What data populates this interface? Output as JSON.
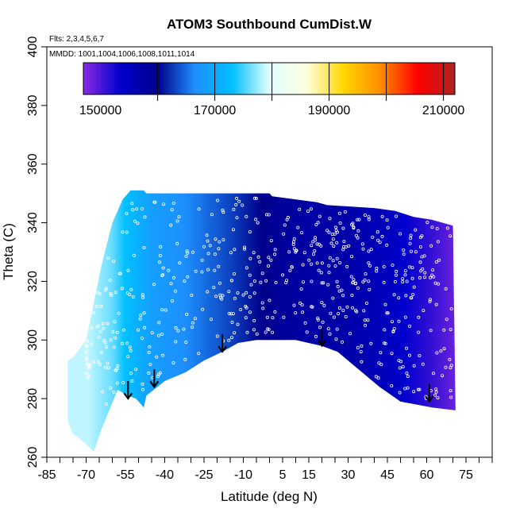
{
  "chart_data": {
    "type": "heatmap",
    "title": "ATOM3 Southbound CumDist.W",
    "annotations": {
      "flights": "Flts: 2,3,4,5,6,7",
      "mmdd": "MMDD: 1001,1004,1006,1008,1011,1014"
    },
    "xlabel": "Latitude (deg N)",
    "ylabel": "Theta (C)",
    "xlim": [
      -85,
      85
    ],
    "ylim": [
      260,
      400
    ],
    "x_ticks": [
      "-85",
      "-70",
      "-55",
      "-40",
      "-25",
      "-10",
      "5",
      "15",
      "30",
      "45",
      "60",
      "75"
    ],
    "x_tick_values": [
      -85,
      -70,
      -55,
      -40,
      -25,
      -10,
      5,
      15,
      30,
      45,
      60,
      75
    ],
    "x_minor_step": 5,
    "y_ticks": [
      "260",
      "280",
      "300",
      "320",
      "340",
      "360",
      "380",
      "400"
    ],
    "y_tick_values": [
      260,
      280,
      300,
      320,
      340,
      360,
      380,
      400
    ],
    "colorbar": {
      "range": [
        147000,
        212000
      ],
      "tick_values": [
        150000,
        170000,
        190000,
        210000
      ],
      "tick_labels": [
        "150000",
        "170000",
        "190000",
        "210000"
      ],
      "divisions": [
        160000,
        170000,
        180000,
        190000,
        200000,
        210000
      ],
      "palette": [
        "#8a2be2",
        "#0000cd",
        "#00008b",
        "#1e90ff",
        "#00bfff",
        "#e0ffff",
        "#ffffe0",
        "#ffd700",
        "#ff8c00",
        "#ff0000",
        "#b22222"
      ]
    },
    "field": {
      "description_value_at_lat": [
        {
          "lat": -69,
          "value": 178500
        },
        {
          "lat": -60,
          "value": 176000
        },
        {
          "lat": -55,
          "value": 173000
        },
        {
          "lat": -45,
          "value": 168500
        },
        {
          "lat": -30,
          "value": 166000
        },
        {
          "lat": -15,
          "value": 163000
        },
        {
          "lat": -5,
          "value": 160500
        },
        {
          "lat": 5,
          "value": 158500
        },
        {
          "lat": 15,
          "value": 157500
        },
        {
          "lat": 30,
          "value": 157000
        },
        {
          "lat": 45,
          "value": 155000
        },
        {
          "lat": 60,
          "value": 151500
        },
        {
          "lat": 71,
          "value": 148500
        }
      ],
      "top_boundary": [
        {
          "lat": -70,
          "theta": 300
        },
        {
          "lat": -64,
          "theta": 326
        },
        {
          "lat": -60,
          "theta": 340
        },
        {
          "lat": -56,
          "theta": 348
        },
        {
          "lat": -53,
          "theta": 351
        },
        {
          "lat": -48,
          "theta": 351
        },
        {
          "lat": -47,
          "theta": 350
        },
        {
          "lat": 0,
          "theta": 350
        },
        {
          "lat": 1,
          "theta": 349
        },
        {
          "lat": 18,
          "theta": 347
        },
        {
          "lat": 22,
          "theta": 346
        },
        {
          "lat": 40,
          "theta": 345
        },
        {
          "lat": 48,
          "theta": 344
        },
        {
          "lat": 55,
          "theta": 342
        },
        {
          "lat": 62,
          "theta": 341
        },
        {
          "lat": 70,
          "theta": 339
        }
      ],
      "bottom_boundary": [
        {
          "lat": 71,
          "theta": 276
        },
        {
          "lat": 62,
          "theta": 277
        },
        {
          "lat": 50,
          "theta": 279
        },
        {
          "lat": 42,
          "theta": 284
        },
        {
          "lat": 34,
          "theta": 290
        },
        {
          "lat": 26,
          "theta": 296
        },
        {
          "lat": 20,
          "theta": 298
        },
        {
          "lat": 10,
          "theta": 300
        },
        {
          "lat": -5,
          "theta": 300
        },
        {
          "lat": -12,
          "theta": 299
        },
        {
          "lat": -18,
          "theta": 296
        },
        {
          "lat": -25,
          "theta": 293
        },
        {
          "lat": -32,
          "theta": 289
        },
        {
          "lat": -40,
          "theta": 286
        },
        {
          "lat": -47,
          "theta": 281
        },
        {
          "lat": -48,
          "theta": 277
        },
        {
          "lat": -51,
          "theta": 280
        },
        {
          "lat": -54,
          "theta": 281
        },
        {
          "lat": -58,
          "theta": 283
        },
        {
          "lat": -64,
          "theta": 270
        },
        {
          "lat": -67,
          "theta": 262
        },
        {
          "lat": -72,
          "theta": 266
        },
        {
          "lat": -75,
          "theta": 268
        },
        {
          "lat": -77,
          "theta": 272
        },
        {
          "lat": -77,
          "theta": 293
        },
        {
          "lat": -75,
          "theta": 294
        }
      ]
    },
    "arrows": [
      {
        "lat": -54,
        "theta_top": 286,
        "theta_tip": 280
      },
      {
        "lat": -44,
        "theta_top": 290,
        "theta_tip": 284
      },
      {
        "lat": -18,
        "theta_top": 302,
        "theta_tip": 296
      },
      {
        "lat": 20,
        "theta_top": 304,
        "theta_tip": 298
      },
      {
        "lat": 61,
        "theta_top": 285,
        "theta_tip": 279
      }
    ]
  }
}
